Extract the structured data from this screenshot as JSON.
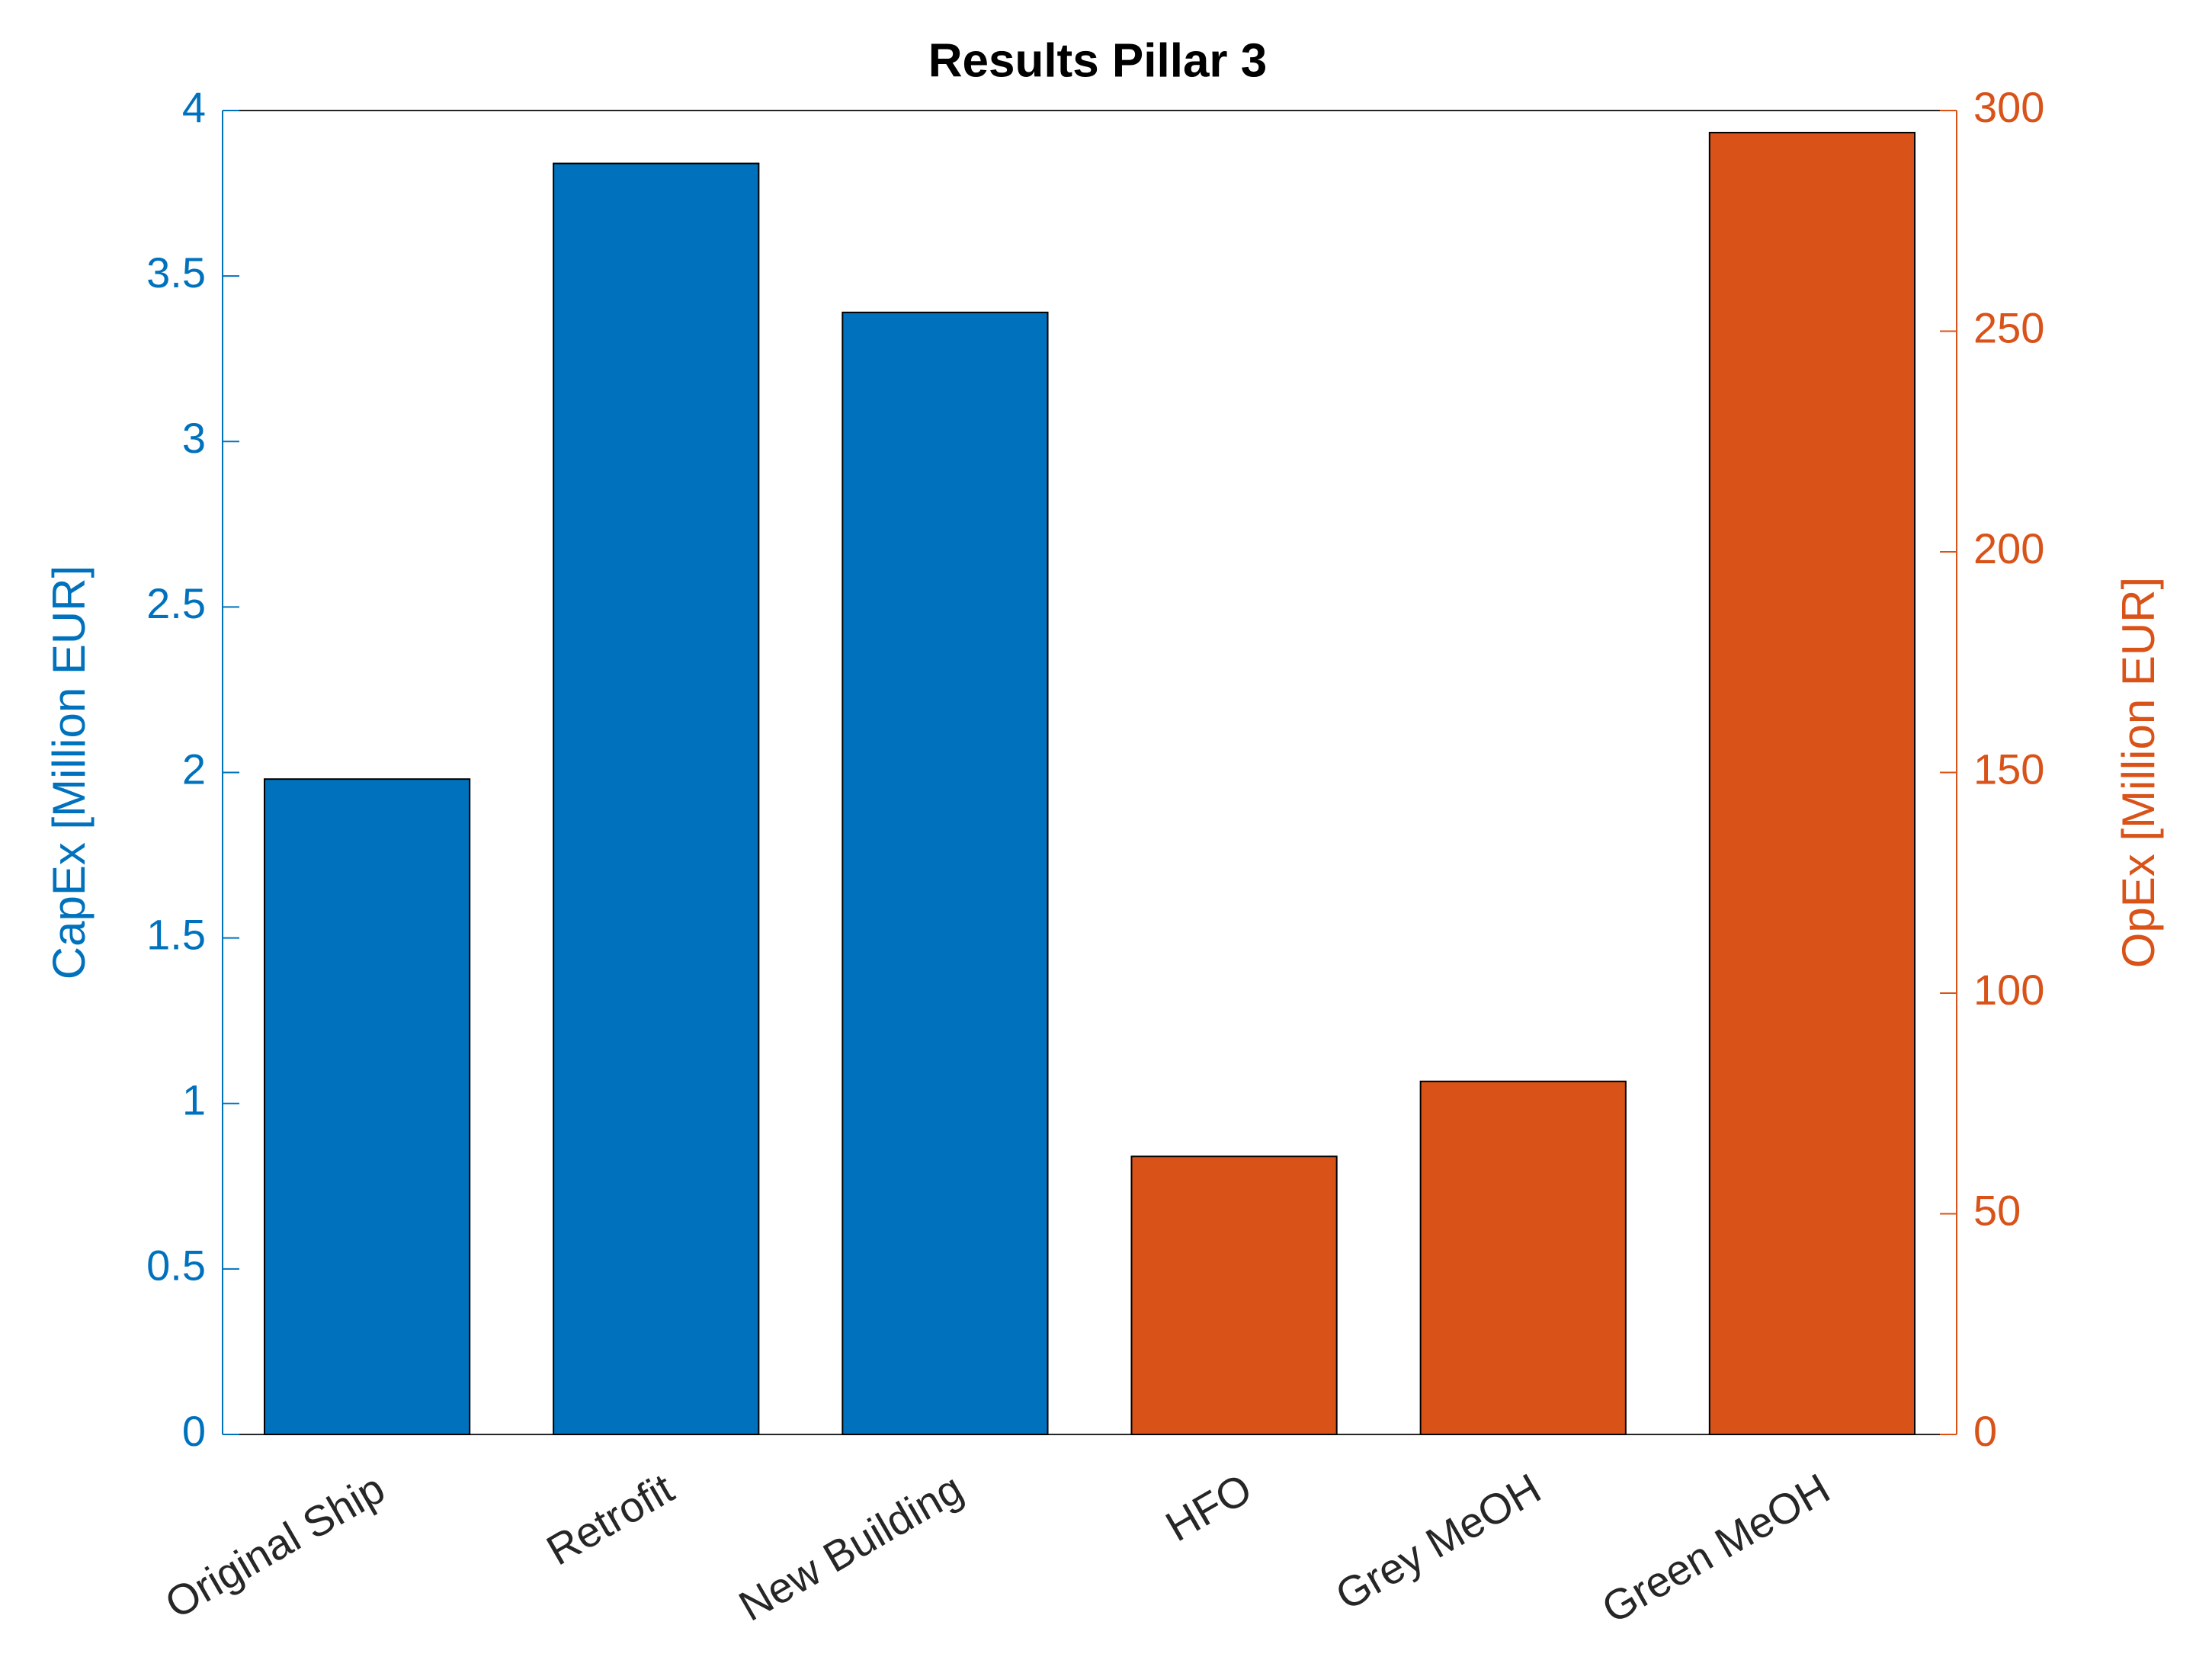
{
  "chart_data": {
    "type": "bar",
    "title": "Results Pillar 3",
    "categories": [
      "Original Ship",
      "Retrofit",
      "New Building",
      "HFO",
      "Grey MeOH",
      "Green MeOH"
    ],
    "ylabel": "CapEx [Million EUR]",
    "y2label": "OpEx [Million EUR]",
    "series": [
      {
        "name": "CapEx",
        "color": "#0072bd",
        "values": [
          1.98,
          3.84,
          3.39,
          null,
          null,
          null
        ]
      },
      {
        "name": "OpEx",
        "color": "#d95319",
        "axis": "y2",
        "values": [
          null,
          null,
          null,
          63,
          80,
          295
        ]
      }
    ],
    "ylim": [
      0,
      4
    ],
    "yticks": [
      0,
      0.5,
      1,
      1.5,
      2,
      2.5,
      3,
      3.5,
      4
    ],
    "y2lim": [
      0,
      300
    ],
    "y2ticks": [
      0,
      50,
      100,
      150,
      200,
      250,
      300
    ]
  }
}
